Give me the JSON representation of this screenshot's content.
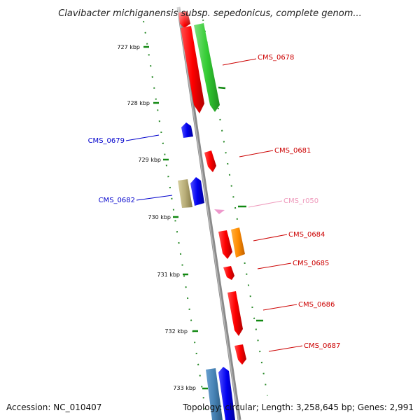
{
  "title": "Clavibacter michiganensis subsp. sepedonicus, complete genom...",
  "ticks": [
    "727 kbp",
    "728 kbp",
    "729 kbp",
    "730 kbp",
    "731 kbp",
    "732 kbp",
    "733 kbp"
  ],
  "genes": [
    {
      "label": "CMS_0678",
      "color": "#cc0000"
    },
    {
      "label": "CMS_0679",
      "color": "#0000cc"
    },
    {
      "label": "CMS_0681",
      "color": "#cc0000"
    },
    {
      "label": "CMS_0682",
      "color": "#0000cc"
    },
    {
      "label": "CMS_r050",
      "color": "#ee99bb"
    },
    {
      "label": "CMS_0684",
      "color": "#cc0000"
    },
    {
      "label": "CMS_0685",
      "color": "#cc0000"
    },
    {
      "label": "CMS_0686",
      "color": "#cc0000"
    },
    {
      "label": "CMS_0687",
      "color": "#cc0000"
    }
  ],
  "footer": {
    "accession": "Accession: NC_010407",
    "summary": "Topology: circular; Length: 3,258,645 bp; Genes: 2,991"
  }
}
